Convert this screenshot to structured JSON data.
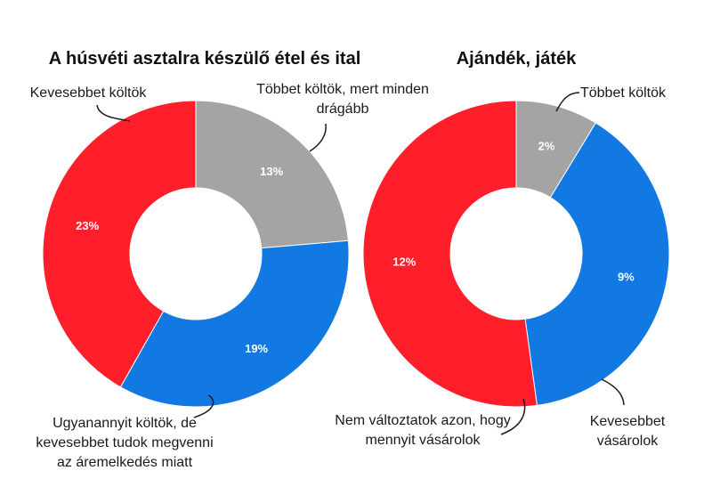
{
  "colors": {
    "red": "#ff1f2b",
    "blue": "#1278e2",
    "gray": "#a4a4a4",
    "hole": "#ffffff"
  },
  "chart_data": [
    {
      "type": "pie",
      "variant": "donut",
      "title": "A húsvéti asztalra készülő étel és ital",
      "slices": [
        {
          "label": "Többet költök, mert minden drágább",
          "value": 13,
          "display": "13%",
          "color": "#a4a4a4"
        },
        {
          "label": "Ugyanannyit költök, de kevesebbet tudok megvenni az áremelkedés miatt",
          "value": 19,
          "display": "19%",
          "color": "#1278e2"
        },
        {
          "label": "Kevesebbet költök",
          "value": 23,
          "display": "23%",
          "color": "#ff1f2b"
        }
      ],
      "annotations": [
        [
          "Többet költök, mert minden",
          "drágább"
        ],
        [
          "Ugyanannyit költök, de",
          "kevesebbet tudok megvenni",
          "az áremelkedés miatt"
        ],
        [
          "Kevesebbet költök"
        ]
      ]
    },
    {
      "type": "pie",
      "variant": "donut",
      "title": "Ajándék, játék",
      "slices": [
        {
          "label": "Többet költök",
          "value": 2,
          "display": "2%",
          "color": "#a4a4a4"
        },
        {
          "label": "Kevesebbet vásárolok",
          "value": 9,
          "display": "9%",
          "color": "#1278e2"
        },
        {
          "label": "Nem változtatok azon, hogy mennyit vásárolok",
          "value": 12,
          "display": "12%",
          "color": "#ff1f2b"
        }
      ],
      "annotations": [
        [
          "Többet költök"
        ],
        [
          "Kevesebbet",
          "vásárolok"
        ],
        [
          "Nem változtatok azon, hogy",
          "mennyit vásárolok"
        ]
      ]
    }
  ]
}
